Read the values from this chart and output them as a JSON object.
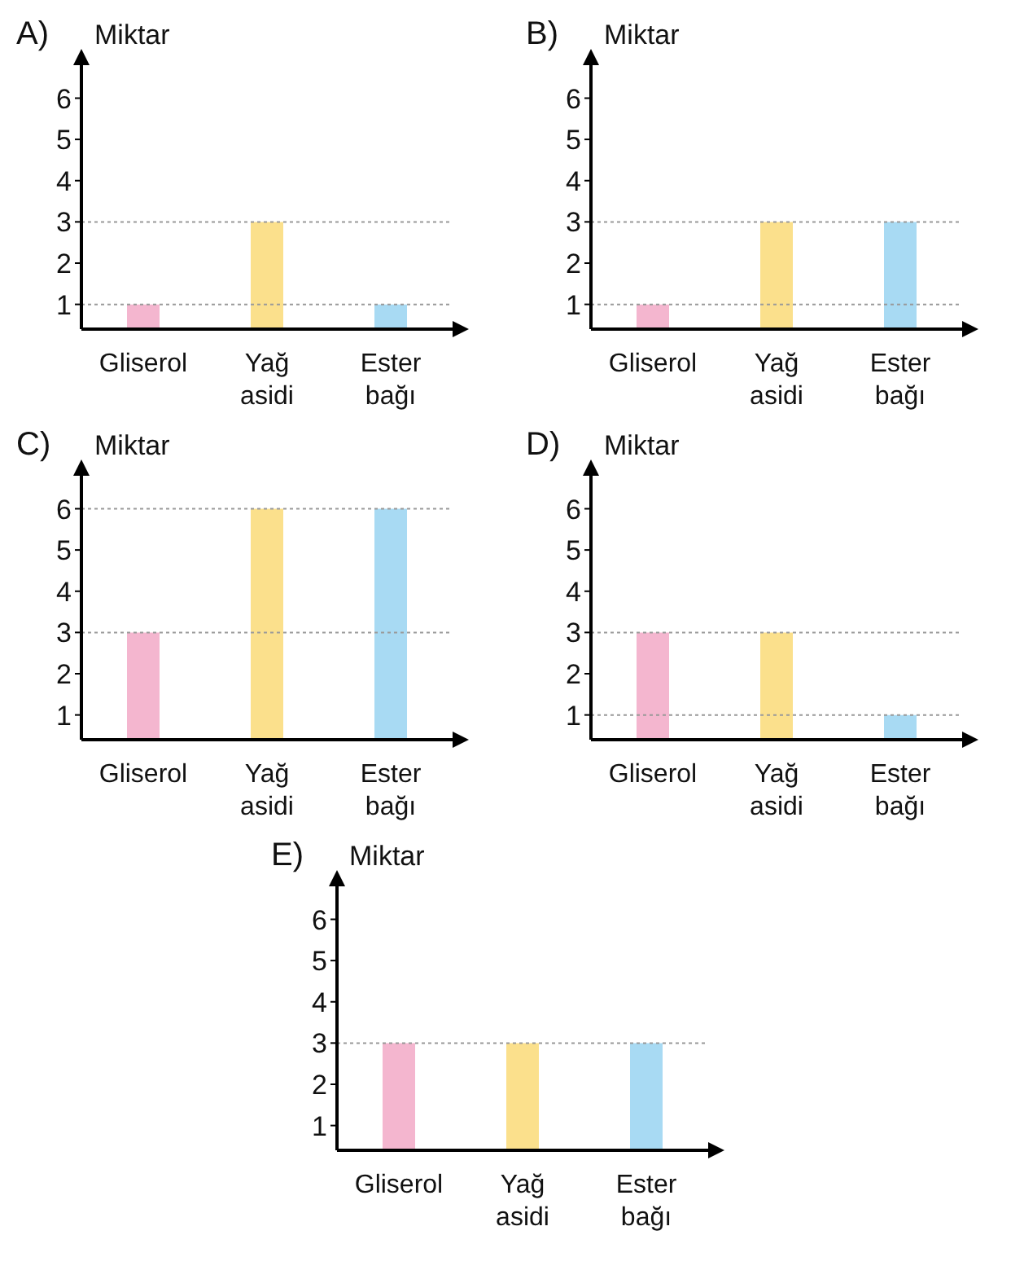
{
  "chart_data": [
    {
      "type": "bar",
      "title": "A)",
      "ylabel": "Miktar",
      "categories": [
        "Gliserol",
        "Yağ asidi",
        "Ester bağı"
      ],
      "values": [
        1,
        3,
        1
      ],
      "colors": [
        "#f4b6cf",
        "#fbe08c",
        "#a8daf3"
      ],
      "ylim": [
        0.4,
        6.8
      ],
      "yticks": [
        1,
        2,
        3,
        4,
        5,
        6
      ],
      "grid": false,
      "legend": false,
      "ref_lines": [
        {
          "axis": "y",
          "value": 1,
          "color": "#999999",
          "line_style": "dotted"
        },
        {
          "axis": "y",
          "value": 3,
          "color": "#999999",
          "line_style": "dotted"
        }
      ]
    },
    {
      "type": "bar",
      "title": "B)",
      "ylabel": "Miktar",
      "categories": [
        "Gliserol",
        "Yağ asidi",
        "Ester bağı"
      ],
      "values": [
        1,
        3,
        3
      ],
      "colors": [
        "#f4b6cf",
        "#fbe08c",
        "#a8daf3"
      ],
      "ylim": [
        0.4,
        6.8
      ],
      "yticks": [
        1,
        2,
        3,
        4,
        5,
        6
      ],
      "grid": false,
      "legend": false,
      "ref_lines": [
        {
          "axis": "y",
          "value": 1,
          "color": "#999999",
          "line_style": "dotted"
        },
        {
          "axis": "y",
          "value": 3,
          "color": "#999999",
          "line_style": "dotted"
        }
      ]
    },
    {
      "type": "bar",
      "title": "C)",
      "ylabel": "Miktar",
      "categories": [
        "Gliserol",
        "Yağ asidi",
        "Ester bağı"
      ],
      "values": [
        3,
        6,
        6
      ],
      "colors": [
        "#f4b6cf",
        "#fbe08c",
        "#a8daf3"
      ],
      "ylim": [
        0.4,
        6.8
      ],
      "yticks": [
        1,
        2,
        3,
        4,
        5,
        6
      ],
      "grid": false,
      "legend": false,
      "ref_lines": [
        {
          "axis": "y",
          "value": 3,
          "color": "#999999",
          "line_style": "dotted"
        },
        {
          "axis": "y",
          "value": 6,
          "color": "#999999",
          "line_style": "dotted"
        }
      ]
    },
    {
      "type": "bar",
      "title": "D)",
      "ylabel": "Miktar",
      "categories": [
        "Gliserol",
        "Yağ asidi",
        "Ester bağı"
      ],
      "values": [
        3,
        3,
        1
      ],
      "colors": [
        "#f4b6cf",
        "#fbe08c",
        "#a8daf3"
      ],
      "ylim": [
        0.4,
        6.8
      ],
      "yticks": [
        1,
        2,
        3,
        4,
        5,
        6
      ],
      "grid": false,
      "legend": false,
      "ref_lines": [
        {
          "axis": "y",
          "value": 1,
          "color": "#999999",
          "line_style": "dotted"
        },
        {
          "axis": "y",
          "value": 3,
          "color": "#999999",
          "line_style": "dotted"
        }
      ]
    },
    {
      "type": "bar",
      "title": "E)",
      "ylabel": "Miktar",
      "categories": [
        "Gliserol",
        "Yağ asidi",
        "Ester bağı"
      ],
      "values": [
        3,
        3,
        3
      ],
      "colors": [
        "#f4b6cf",
        "#fbe08c",
        "#a8daf3"
      ],
      "ylim": [
        0.4,
        6.8
      ],
      "yticks": [
        1,
        2,
        3,
        4,
        5,
        6
      ],
      "grid": false,
      "legend": false,
      "ref_lines": [
        {
          "axis": "y",
          "value": 3,
          "color": "#999999",
          "line_style": "dotted"
        }
      ]
    }
  ]
}
